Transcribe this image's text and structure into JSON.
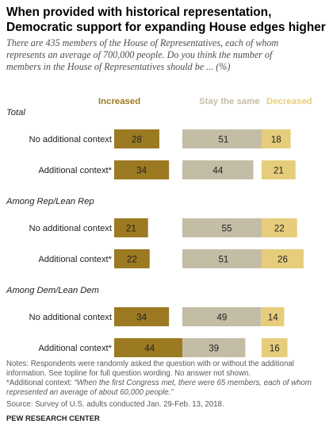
{
  "title_line1": "When provided with historical representation,",
  "title_line2": "Democratic support for expanding House edges higher",
  "subtitle_line1": "There are 435 members of the House of Representatives, each of whom",
  "subtitle_line2": "represents an average of 700,000 people. Do you think the number of",
  "subtitle_line3": "members in the House of Representatives should be ... (%)",
  "notes_line1": "Notes: Respondents were randomly asked the question with or without the additional",
  "notes_line2": "information. See topline for full question wording. No answer not shown.",
  "notes2_prefix": "*Additional context: ",
  "notes2_context_line1": "“When the first Congress met, there were 65 members, each of whom",
  "notes2_context_line2": "represented an average of about 60,000 people.”",
  "survey": "Source: Survey of U.S. adults conducted Jan. 29-Feb. 13, 2018.",
  "source": "PEW RESEARCH CENTER",
  "colors": {
    "increased": "#9c7a22",
    "stay": "#c4bda6",
    "decreased": "#e6cd7c"
  },
  "chart_data": {
    "type": "bar",
    "orientation": "horizontal",
    "columns": [
      "Increased",
      "Stay the same",
      "Decreased"
    ],
    "column_colors": [
      "#9c7a22",
      "#c4bda6",
      "#e6cd7c"
    ],
    "groups": [
      {
        "name": "Total",
        "rows": [
          {
            "label": "No additional context",
            "values": [
              28,
              51,
              18
            ]
          },
          {
            "label": "Additional context*",
            "values": [
              34,
              44,
              21
            ]
          }
        ]
      },
      {
        "name": "Among Rep/Lean Rep",
        "rows": [
          {
            "label": "No additional context",
            "values": [
              21,
              55,
              22
            ]
          },
          {
            "label": "Additional context*",
            "values": [
              22,
              51,
              26
            ]
          }
        ]
      },
      {
        "name": "Among Dem/Lean Dem",
        "rows": [
          {
            "label": "No additional context",
            "values": [
              34,
              49,
              14
            ]
          },
          {
            "label": "Additional context*",
            "values": [
              44,
              39,
              16
            ]
          }
        ]
      }
    ]
  }
}
